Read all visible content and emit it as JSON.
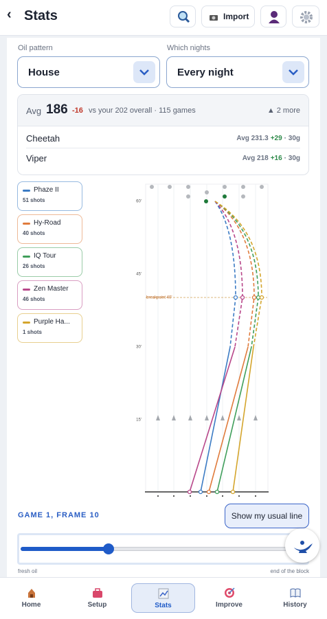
{
  "header": {
    "back": "‹",
    "title": "Stats",
    "import": "Import"
  },
  "filters": [
    {
      "label": "Oil pattern",
      "value": "House"
    },
    {
      "label": "Which nights",
      "value": "Every night"
    }
  ],
  "summary": {
    "avg_label": "Avg",
    "avg": "186",
    "delta": "-16",
    "context": "vs your 202 overall · 115 games",
    "more": "▲ 2 more",
    "rows": [
      {
        "name": "Cheetah",
        "avg": "Avg 231.3",
        "delta": "+29",
        "games": "· 30g"
      },
      {
        "name": "Viper",
        "avg": "Avg 218",
        "delta": "+16",
        "games": "· 30g"
      }
    ]
  },
  "balls": [
    {
      "name": "Phaze II",
      "shots": "51 shots",
      "color": "#3b7bc4"
    },
    {
      "name": "Hy-Road",
      "shots": "40 shots",
      "color": "#e07b3c"
    },
    {
      "name": "IQ Tour",
      "shots": "26 shots",
      "color": "#3f9e5a"
    },
    {
      "name": "Zen Master",
      "shots": "46 shots",
      "color": "#b8478a"
    },
    {
      "name": "Purple Ha...",
      "shots": "1 shots",
      "color": "#d4a52c"
    }
  ],
  "lane": {
    "distance_labels": [
      "60'",
      "45'",
      "30'",
      "15'"
    ],
    "breakpoint": "breakpoint 40'"
  },
  "frame": {
    "title": "GAME 1, FRAME 10",
    "button": "Show my usual line",
    "start": "fresh oil",
    "end": "end of the block"
  },
  "nav": [
    {
      "label": "Home"
    },
    {
      "label": "Setup"
    },
    {
      "label": "Stats"
    },
    {
      "label": "Improve"
    },
    {
      "label": "History"
    }
  ]
}
